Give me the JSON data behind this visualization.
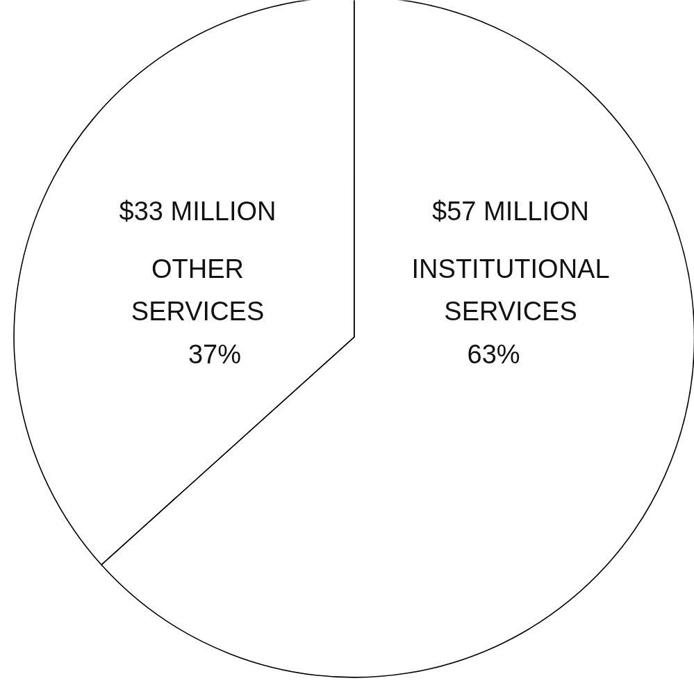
{
  "chart_data": {
    "type": "pie",
    "categories": [
      "INSTITUTIONAL SERVICES",
      "OTHER SERVICES"
    ],
    "values": [
      57,
      33
    ],
    "value_labels": [
      "$57 MILLION",
      "$33 MILLION"
    ],
    "colors": [
      "#ffffff",
      "#ffffff"
    ],
    "annotations": [
      "63%",
      "37%"
    ]
  }
}
